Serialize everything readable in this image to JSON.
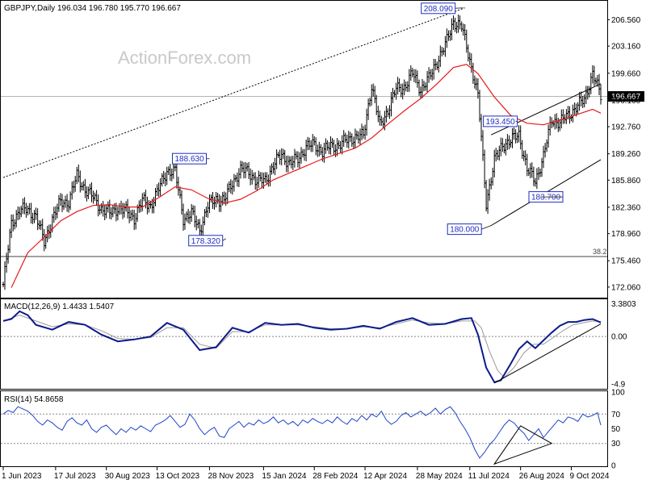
{
  "chart_data": [
    {
      "type": "line",
      "panel": "price",
      "header": "GBPJPY,Daily  196.034 196.780 195.770 196.667",
      "watermark": "ActionForex.com",
      "ylim": [
        170.8,
        208.9
      ],
      "yticks": [
        "206.560",
        "203.160",
        "199.660",
        "196.160",
        "192.760",
        "189.260",
        "185.860",
        "182.360",
        "178.960",
        "175.460",
        "172.060"
      ],
      "last_price": "196.667",
      "x_dates": [
        "1 Jun 2023",
        "17 Jul 2023",
        "30 Aug 2023",
        "13 Oct 2023",
        "28 Nov 2023",
        "15 Jan 2024",
        "28 Feb 2024",
        "12 Apr 2024",
        "28 May 2024",
        "11 Jul 2024",
        "26 Aug 2024",
        "9 Oct 2024"
      ],
      "x_index": [
        0,
        32,
        63,
        94,
        126,
        159,
        190,
        221,
        253,
        285,
        316,
        347
      ],
      "close_series": {
        "x": [
          0,
          5,
          10,
          15,
          20,
          25,
          30,
          35,
          40,
          45,
          50,
          55,
          60,
          65,
          70,
          75,
          80,
          85,
          90,
          95,
          100,
          105,
          110,
          115,
          120,
          125,
          130,
          135,
          140,
          145,
          150,
          155,
          160,
          165,
          170,
          175,
          180,
          185,
          190,
          195,
          200,
          205,
          210,
          215,
          220,
          225,
          230,
          235,
          240,
          245,
          250,
          255,
          260,
          265,
          270,
          275,
          280,
          285,
          290,
          295,
          300,
          305,
          310,
          315,
          320,
          325,
          330,
          335,
          340,
          345,
          350,
          355,
          360,
          365
        ],
        "y": [
          172.4,
          180.2,
          182.1,
          181.9,
          181.3,
          177.8,
          180.9,
          183.0,
          183.1,
          186.4,
          184.7,
          183.6,
          182.2,
          181.6,
          182.3,
          181.8,
          181.0,
          183.2,
          182.6,
          184.7,
          187.1,
          186.9,
          181.0,
          181.5,
          179.5,
          182.5,
          183.5,
          183.2,
          185.6,
          187.1,
          187.0,
          185.6,
          185.9,
          187.7,
          189.2,
          188.0,
          188.6,
          190.2,
          190.4,
          189.6,
          190.2,
          190.4,
          191.0,
          191.5,
          191.5,
          198.2,
          192.8,
          195.0,
          197.6,
          197.9,
          199.6,
          197.6,
          198.9,
          201.3,
          203.2,
          206.4,
          205.6,
          201.4,
          196.7,
          183.0,
          188.3,
          190.5,
          190.9,
          191.8,
          187.2,
          185.8,
          188.9,
          193.7,
          193.3,
          194.2,
          195.3,
          196.2,
          199.7,
          196.667
        ]
      },
      "ma_series": {
        "x": [
          5,
          15,
          25,
          35,
          45,
          55,
          65,
          75,
          85,
          95,
          105,
          115,
          125,
          135,
          145,
          155,
          165,
          175,
          185,
          195,
          205,
          215,
          225,
          235,
          245,
          255,
          265,
          275,
          283,
          290,
          300,
          310,
          320,
          330,
          340,
          350,
          360,
          365
        ],
        "y": [
          172.0,
          176.5,
          178.5,
          180.6,
          181.8,
          182.6,
          182.7,
          182.4,
          182.4,
          183.6,
          185.0,
          184.6,
          183.5,
          182.9,
          183.4,
          184.5,
          185.9,
          186.8,
          187.7,
          188.6,
          189.3,
          190.0,
          191.3,
          193.1,
          194.8,
          196.4,
          198.3,
          200.4,
          200.8,
          199.6,
          196.6,
          194.2,
          193.2,
          193.0,
          193.6,
          194.3,
          195.0,
          194.5
        ]
      },
      "annotations": [
        {
          "text": "208.090",
          "x": 281,
          "y": 208.09
        },
        {
          "text": "188.630",
          "x": 126,
          "y": 188.63
        },
        {
          "text": "178.320",
          "x": 136,
          "y": 178.32
        },
        {
          "text": "193.450",
          "x": 313,
          "y": 193.45
        },
        {
          "text": "183.700",
          "x": 328,
          "y": 183.7
        },
        {
          "text": "180.000",
          "x": 298,
          "y": 180.0
        }
      ],
      "level_label": "38.2",
      "level_value": 176.0,
      "lines": [
        {
          "style": "dotted",
          "x1": 0,
          "y1": 186.2,
          "x2": 282,
          "y2": 208.1
        },
        {
          "style": "solid",
          "x1": 298,
          "y1": 191.7,
          "x2": 365,
          "y2": 198.3
        },
        {
          "style": "solid",
          "x1": 298,
          "y1": 180.0,
          "x2": 365,
          "y2": 188.5
        }
      ]
    },
    {
      "type": "line",
      "panel": "macd",
      "header": "MACD(12,26,9) 1.4433 1.5407",
      "ylim": [
        -5.3,
        3.75
      ],
      "yticks": [
        "3.3803",
        "0.00",
        "-4.9"
      ],
      "macd_series": {
        "x": [
          0,
          5,
          10,
          15,
          20,
          30,
          40,
          50,
          60,
          70,
          80,
          90,
          100,
          110,
          120,
          130,
          140,
          150,
          160,
          170,
          180,
          190,
          200,
          210,
          220,
          230,
          240,
          250,
          260,
          270,
          280,
          286,
          290,
          295,
          300,
          304,
          310,
          315,
          320,
          325,
          330,
          335,
          340,
          345,
          350,
          355,
          360,
          365
        ],
        "y": [
          1.6,
          1.8,
          2.6,
          2.2,
          1.2,
          0.7,
          1.5,
          1.2,
          0.2,
          -0.5,
          -0.3,
          0.0,
          1.4,
          0.7,
          -1.4,
          -1.1,
          0.9,
          0.4,
          1.4,
          1.2,
          1.3,
          0.9,
          0.7,
          0.8,
          1.1,
          0.8,
          1.5,
          1.9,
          1.2,
          1.3,
          1.8,
          1.9,
          0.2,
          -3.2,
          -4.7,
          -4.5,
          -2.8,
          -1.3,
          -0.5,
          -1.2,
          -0.4,
          0.4,
          1.1,
          1.5,
          1.5,
          1.7,
          1.8,
          1.44
        ]
      },
      "signal_series": {
        "x": [
          0,
          10,
          20,
          30,
          40,
          50,
          60,
          70,
          80,
          90,
          100,
          110,
          120,
          130,
          140,
          150,
          160,
          170,
          180,
          190,
          200,
          210,
          220,
          230,
          240,
          250,
          260,
          270,
          280,
          288,
          292,
          297,
          302,
          306,
          312,
          318,
          324,
          330,
          336,
          342,
          348,
          354,
          360,
          365
        ],
        "y": [
          1.6,
          2.2,
          1.6,
          1.0,
          1.3,
          1.2,
          0.6,
          -0.2,
          -0.3,
          -0.1,
          0.9,
          0.9,
          -0.8,
          -1.2,
          0.5,
          0.5,
          1.2,
          1.2,
          1.2,
          1.0,
          0.8,
          0.8,
          1.0,
          0.9,
          1.3,
          1.7,
          1.4,
          1.3,
          1.6,
          1.6,
          0.9,
          -1.5,
          -3.5,
          -4.2,
          -3.2,
          -1.7,
          -0.8,
          -0.8,
          -0.1,
          0.6,
          1.2,
          1.4,
          1.6,
          1.54
        ]
      },
      "trendline": {
        "x1": 300,
        "y1": -4.8,
        "x2": 365,
        "y2": 1.3
      }
    },
    {
      "type": "line",
      "panel": "rsi",
      "header": "RSI(14) 54.8658",
      "ylim": [
        0,
        100
      ],
      "yticks": [
        "100",
        "70",
        "50",
        "30",
        "0"
      ],
      "rsi_series": {
        "x": [
          0,
          3,
          6,
          9,
          12,
          15,
          18,
          21,
          24,
          27,
          30,
          33,
          36,
          39,
          42,
          45,
          48,
          51,
          54,
          57,
          60,
          63,
          66,
          69,
          72,
          75,
          78,
          81,
          84,
          87,
          90,
          93,
          96,
          99,
          102,
          105,
          108,
          111,
          114,
          117,
          120,
          123,
          126,
          129,
          132,
          135,
          138,
          141,
          144,
          147,
          150,
          153,
          156,
          159,
          162,
          165,
          168,
          171,
          174,
          177,
          180,
          183,
          186,
          189,
          192,
          195,
          198,
          201,
          204,
          207,
          210,
          213,
          216,
          219,
          222,
          225,
          228,
          231,
          234,
          237,
          240,
          243,
          246,
          249,
          252,
          255,
          258,
          261,
          264,
          267,
          270,
          273,
          276,
          279,
          282,
          285,
          288,
          291,
          294,
          297,
          300,
          303,
          306,
          309,
          312,
          315,
          318,
          321,
          324,
          327,
          330,
          333,
          336,
          339,
          342,
          345,
          348,
          351,
          354,
          357,
          360,
          363,
          365
        ],
        "y": [
          70,
          75,
          72,
          80,
          77,
          74,
          68,
          60,
          55,
          62,
          58,
          52,
          48,
          60,
          65,
          58,
          55,
          62,
          50,
          45,
          52,
          55,
          48,
          42,
          50,
          45,
          52,
          48,
          54,
          50,
          46,
          55,
          58,
          62,
          68,
          60,
          52,
          56,
          70,
          62,
          50,
          42,
          48,
          52,
          40,
          38,
          50,
          55,
          60,
          52,
          58,
          55,
          62,
          57,
          60,
          66,
          58,
          62,
          56,
          60,
          54,
          62,
          58,
          64,
          60,
          57,
          62,
          58,
          66,
          60,
          56,
          64,
          60,
          68,
          62,
          70,
          66,
          74,
          62,
          56,
          60,
          68,
          72,
          66,
          70,
          74,
          68,
          72,
          78,
          70,
          76,
          80,
          72,
          60,
          50,
          38,
          22,
          10,
          18,
          28,
          35,
          45,
          55,
          62,
          58,
          50,
          44,
          34,
          42,
          50,
          38,
          46,
          54,
          62,
          58,
          66,
          64,
          60,
          70,
          66,
          68,
          72,
          55
        ]
      },
      "triangle": [
        [
          300,
          2
        ],
        [
          316,
          54
        ],
        [
          335,
          30
        ]
      ]
    }
  ]
}
